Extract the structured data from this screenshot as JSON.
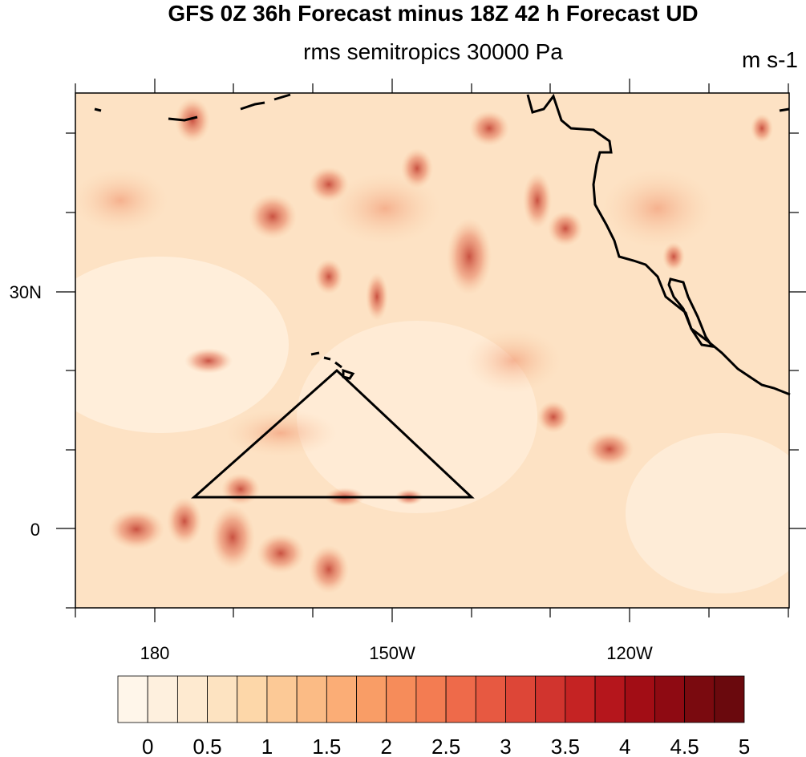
{
  "title": "GFS 0Z 36h Forecast minus 18Z 42 h Forecast UD",
  "subtitle": "rms semitropics 30000 Pa",
  "units": "m s-1",
  "map": {
    "lon_labels": [
      "180",
      "150W",
      "120W"
    ],
    "lat_labels": [
      "30N",
      "0"
    ],
    "colormap": "white-to-dark-red (OrRd)"
  },
  "colorbar": {
    "labels": [
      "0",
      "0.5",
      "1",
      "1.5",
      "2",
      "2.5",
      "3",
      "3.5",
      "4",
      "4.5",
      "5"
    ],
    "colors": [
      "#fff6ea",
      "#fef0de",
      "#feead0",
      "#fde3c1",
      "#fdd7a9",
      "#fcc996",
      "#fbbb85",
      "#fbad76",
      "#f99d66",
      "#f68c5a",
      "#f37c52",
      "#ee6a4a",
      "#e75941",
      "#dd4637",
      "#d1342e",
      "#c52323",
      "#b5161c",
      "#a20d15",
      "#8e0a12",
      "#7a0a0f",
      "#6a090d"
    ]
  }
}
